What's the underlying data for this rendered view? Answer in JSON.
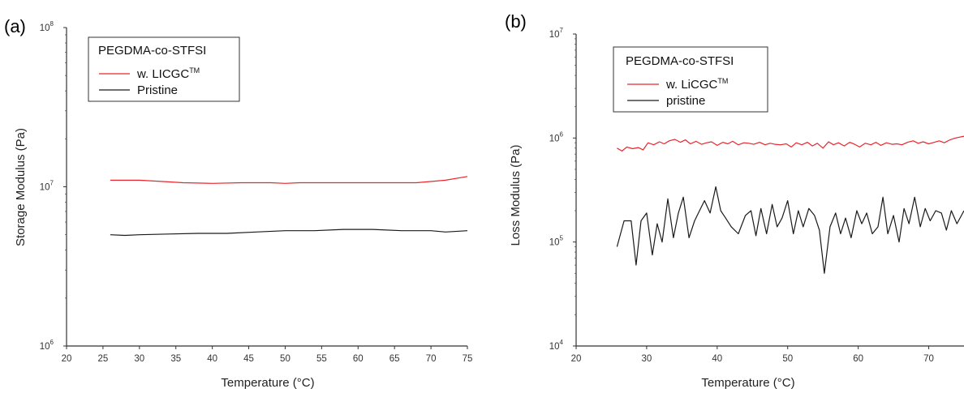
{
  "chart_data": [
    {
      "panel_label": "(a)",
      "type": "line",
      "xlabel": "Temperature (°C)",
      "ylabel": "Storage Modulus (Pa)",
      "xlim": [
        20,
        75
      ],
      "ylim": [
        1000000,
        100000000
      ],
      "yscale": "log",
      "xticks": [
        "20",
        "25",
        "30",
        "35",
        "40",
        "45",
        "50",
        "55",
        "60",
        "65",
        "70",
        "75"
      ],
      "yticks": [
        {
          "base": "10",
          "exp": "6"
        },
        {
          "base": "10",
          "exp": "7"
        },
        {
          "base": "10",
          "exp": "8"
        }
      ],
      "legend": {
        "title": "PEGDMA-co-STFSI",
        "placement": "top-left"
      },
      "series": [
        {
          "name": "w. LICGC",
          "name_sup": "TM",
          "color": "#e8262d",
          "x": [
            26,
            30,
            33,
            36,
            40,
            44,
            48,
            50,
            52,
            56,
            60,
            64,
            68,
            72,
            75
          ],
          "y": [
            11000000,
            11000000,
            10800000,
            10600000,
            10500000,
            10600000,
            10600000,
            10500000,
            10600000,
            10600000,
            10600000,
            10600000,
            10600000,
            11000000,
            11600000
          ]
        },
        {
          "name": "Pristine",
          "color": "#1a1a1a",
          "x": [
            26,
            28,
            30,
            34,
            38,
            42,
            46,
            50,
            54,
            58,
            62,
            66,
            70,
            72,
            75
          ],
          "y": [
            5000000,
            4950000,
            5000000,
            5050000,
            5100000,
            5100000,
            5200000,
            5300000,
            5300000,
            5400000,
            5400000,
            5300000,
            5300000,
            5200000,
            5300000
          ]
        }
      ]
    },
    {
      "panel_label": "(b)",
      "type": "line",
      "xlabel": "Temperature (°C)",
      "ylabel": "Loss Modulus (Pa)",
      "xlim": [
        20,
        75
      ],
      "ylim": [
        10000,
        10000000
      ],
      "yscale": "log",
      "xticks": [
        "20",
        "30",
        "40",
        "50",
        "60",
        "70"
      ],
      "yticks": [
        {
          "base": "10",
          "exp": "4"
        },
        {
          "base": "10",
          "exp": "5"
        },
        {
          "base": "10",
          "exp": "6"
        },
        {
          "base": "10",
          "exp": "7"
        }
      ],
      "legend": {
        "title": "PEGDMA-co-STFSI",
        "placement": "top-left"
      },
      "series": [
        {
          "name": "w. LiCGC",
          "name_sup": "TM",
          "color": "#e8262d",
          "x": [
            25.8,
            26.5,
            27.2,
            28.0,
            28.8,
            29.5,
            30.2,
            31.0,
            31.8,
            32.5,
            33.2,
            34.0,
            34.8,
            35.5,
            36.2,
            37.0,
            37.8,
            38.5,
            39.2,
            40.0,
            40.8,
            41.5,
            42.2,
            43.0,
            43.8,
            44.5,
            45.2,
            46.0,
            46.8,
            47.5,
            48.2,
            49.0,
            49.8,
            50.5,
            51.2,
            52.0,
            52.8,
            53.5,
            54.2,
            55.0,
            55.8,
            56.5,
            57.2,
            58.0,
            58.8,
            59.5,
            60.2,
            61.0,
            61.8,
            62.5,
            63.2,
            64.0,
            64.8,
            65.5,
            66.2,
            67.0,
            67.8,
            68.5,
            69.2,
            70.0,
            70.8,
            71.5,
            72.2,
            73.0,
            73.8,
            75.0
          ],
          "y": [
            800000,
            750000,
            820000,
            790000,
            810000,
            770000,
            900000,
            860000,
            920000,
            880000,
            940000,
            970000,
            910000,
            960000,
            880000,
            930000,
            870000,
            900000,
            920000,
            850000,
            910000,
            880000,
            930000,
            860000,
            900000,
            890000,
            870000,
            910000,
            860000,
            890000,
            870000,
            860000,
            880000,
            820000,
            900000,
            860000,
            910000,
            840000,
            890000,
            800000,
            920000,
            860000,
            900000,
            840000,
            910000,
            870000,
            820000,
            890000,
            860000,
            910000,
            850000,
            900000,
            870000,
            880000,
            860000,
            910000,
            940000,
            890000,
            920000,
            880000,
            910000,
            940000,
            900000,
            960000,
            1000000,
            1040000
          ]
        },
        {
          "name": "pristine",
          "color": "#1a1a1a",
          "x": [
            25.8,
            26.8,
            27.8,
            28.5,
            29.2,
            30.0,
            30.8,
            31.5,
            32.2,
            33.0,
            33.8,
            34.5,
            35.2,
            36.0,
            36.8,
            37.5,
            38.2,
            39.0,
            39.8,
            40.5,
            41.2,
            42.0,
            43.0,
            44.0,
            44.8,
            45.5,
            46.2,
            47.0,
            47.8,
            48.5,
            49.2,
            50.0,
            50.8,
            51.5,
            52.2,
            53.0,
            53.8,
            54.5,
            55.2,
            56.0,
            56.8,
            57.5,
            58.2,
            59.0,
            59.8,
            60.5,
            61.2,
            62.0,
            62.8,
            63.5,
            64.2,
            65.0,
            65.8,
            66.5,
            67.2,
            68.0,
            68.8,
            69.5,
            70.2,
            71.0,
            71.8,
            72.5,
            73.2,
            74.0,
            75.0
          ],
          "y": [
            90000,
            160000,
            160000,
            60000,
            160000,
            190000,
            75000,
            150000,
            100000,
            260000,
            110000,
            190000,
            270000,
            110000,
            160000,
            200000,
            250000,
            190000,
            340000,
            200000,
            170000,
            140000,
            120000,
            180000,
            200000,
            115000,
            210000,
            120000,
            230000,
            140000,
            170000,
            250000,
            120000,
            200000,
            140000,
            210000,
            180000,
            130000,
            50000,
            140000,
            190000,
            120000,
            170000,
            110000,
            200000,
            150000,
            190000,
            120000,
            140000,
            270000,
            120000,
            180000,
            100000,
            210000,
            150000,
            270000,
            140000,
            210000,
            160000,
            200000,
            190000,
            130000,
            200000,
            150000,
            200000
          ]
        }
      ]
    }
  ]
}
